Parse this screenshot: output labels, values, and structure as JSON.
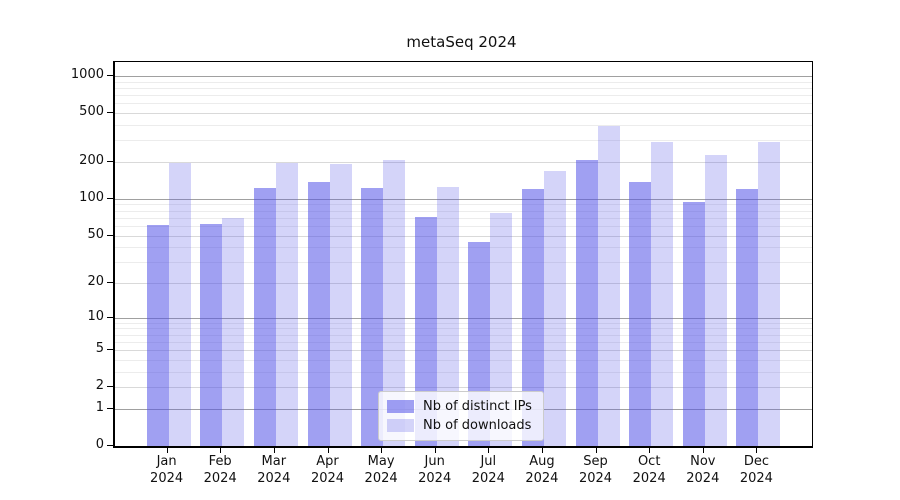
{
  "page": {
    "background": "#ffffff"
  },
  "chart_data": {
    "type": "bar",
    "title": "metaSeq 2024",
    "categories": [
      "Jan 2024",
      "Feb 2024",
      "Mar 2024",
      "Apr 2024",
      "May 2024",
      "Jun 2024",
      "Jul 2024",
      "Aug 2024",
      "Sep 2024",
      "Oct 2024",
      "Nov 2024",
      "Dec 2024"
    ],
    "series": [
      {
        "name": "Nb of distinct IPs",
        "color": "rgba(82,82,232,0.55)",
        "values": [
          61,
          62,
          123,
          137,
          122,
          71,
          44,
          120,
          208,
          138,
          95,
          120
        ]
      },
      {
        "name": "Nb of downloads",
        "color": "rgba(82,82,232,0.25)",
        "values": [
          197,
          70,
          197,
          192,
          207,
          124,
          77,
          168,
          392,
          292,
          230,
          292
        ]
      }
    ],
    "y_ticks": [
      0,
      1,
      2,
      5,
      10,
      20,
      50,
      100,
      200,
      500,
      1000
    ],
    "scale": "log1p",
    "ylim": [
      0,
      1300
    ],
    "grid": "on",
    "legend_position": "lower center",
    "axis_color": "#000000",
    "grid_major_color": "#a0a0a0",
    "grid_mid_color": "#d9d9d9",
    "grid_minor_color": "#ececec"
  }
}
